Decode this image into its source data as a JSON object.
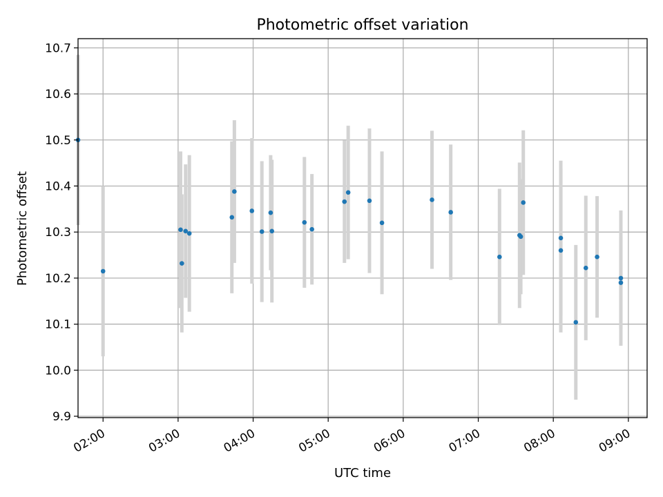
{
  "chart_data": {
    "type": "scatter",
    "title": "Photometric offset variation",
    "xlabel": "UTC time",
    "ylabel": "Photometric offset",
    "xlim": [
      "01:40",
      "09:15"
    ],
    "ylim": [
      9.897,
      10.72
    ],
    "grid": true,
    "x_ticks": [
      "02:00",
      "03:00",
      "04:00",
      "05:00",
      "06:00",
      "07:00",
      "08:00",
      "09:00"
    ],
    "y_ticks": [
      "9.9",
      "10.0",
      "10.1",
      "10.2",
      "10.3",
      "10.4",
      "10.5",
      "10.6",
      "10.7"
    ],
    "colors": {
      "point": "#1f77b4",
      "errorbar": "#d3d3d3",
      "grid": "#b0b0b0"
    },
    "points": [
      {
        "x": "01:40",
        "y": 10.5,
        "err": 0.185
      },
      {
        "x": "02:00",
        "y": 10.215,
        "err": 0.185
      },
      {
        "x": "03:02",
        "y": 10.305,
        "err": 0.17
      },
      {
        "x": "03:03",
        "y": 10.232,
        "err": 0.15
      },
      {
        "x": "03:06",
        "y": 10.302,
        "err": 0.145
      },
      {
        "x": "03:09",
        "y": 10.297,
        "err": 0.17
      },
      {
        "x": "03:43",
        "y": 10.332,
        "err": 0.165
      },
      {
        "x": "03:45",
        "y": 10.388,
        "err": 0.155
      },
      {
        "x": "03:59",
        "y": 10.346,
        "err": 0.158
      },
      {
        "x": "04:07",
        "y": 10.301,
        "err": 0.153
      },
      {
        "x": "04:14",
        "y": 10.342,
        "err": 0.125
      },
      {
        "x": "04:15",
        "y": 10.302,
        "err": 0.155
      },
      {
        "x": "04:41",
        "y": 10.321,
        "err": 0.142
      },
      {
        "x": "04:47",
        "y": 10.306,
        "err": 0.12
      },
      {
        "x": "05:13",
        "y": 10.366,
        "err": 0.133
      },
      {
        "x": "05:16",
        "y": 10.386,
        "err": 0.145
      },
      {
        "x": "05:33",
        "y": 10.368,
        "err": 0.157
      },
      {
        "x": "05:43",
        "y": 10.32,
        "err": 0.155
      },
      {
        "x": "06:23",
        "y": 10.37,
        "err": 0.15
      },
      {
        "x": "06:38",
        "y": 10.343,
        "err": 0.147
      },
      {
        "x": "07:17",
        "y": 10.246,
        "err": 0.148
      },
      {
        "x": "07:33",
        "y": 10.293,
        "err": 0.158
      },
      {
        "x": "07:34",
        "y": 10.29,
        "err": 0.125
      },
      {
        "x": "07:36",
        "y": 10.364,
        "err": 0.157
      },
      {
        "x": "08:06",
        "y": 10.287,
        "err": 0.168
      },
      {
        "x": "08:06",
        "y": 10.26,
        "err": 0.178
      },
      {
        "x": "08:18",
        "y": 10.104,
        "err": 0.168
      },
      {
        "x": "08:26",
        "y": 10.222,
        "err": 0.157
      },
      {
        "x": "08:35",
        "y": 10.246,
        "err": 0.132
      },
      {
        "x": "08:54",
        "y": 10.2,
        "err": 0.147
      },
      {
        "x": "08:54",
        "y": 10.19,
        "err": 0.1
      }
    ]
  }
}
